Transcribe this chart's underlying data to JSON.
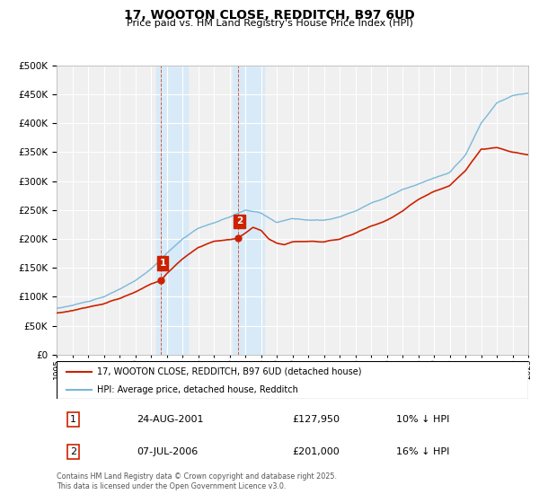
{
  "title": "17, WOOTON CLOSE, REDDITCH, B97 6UD",
  "subtitle": "Price paid vs. HM Land Registry's House Price Index (HPI)",
  "legend_line1": "17, WOOTON CLOSE, REDDITCH, B97 6UD (detached house)",
  "legend_line2": "HPI: Average price, detached house, Redditch",
  "annotation1_label": "1",
  "annotation1_date": "24-AUG-2001",
  "annotation1_price": "£127,950",
  "annotation1_hpi": "10% ↓ HPI",
  "annotation2_label": "2",
  "annotation2_date": "07-JUL-2006",
  "annotation2_price": "£201,000",
  "annotation2_hpi": "16% ↓ HPI",
  "footer": "Contains HM Land Registry data © Crown copyright and database right 2025.\nThis data is licensed under the Open Government Licence v3.0.",
  "hpi_color": "#7ab8d9",
  "price_color": "#cc2200",
  "highlight_color": "#d8eaf7",
  "annotation_box_color": "#cc2200",
  "bg_color": "#f0f0f0",
  "ylim": [
    0,
    500000
  ],
  "yticks": [
    0,
    50000,
    100000,
    150000,
    200000,
    250000,
    300000,
    350000,
    400000,
    450000,
    500000
  ],
  "year_start": 1995,
  "year_end": 2025,
  "sale1_year": 2001.65,
  "sale1_price": 127950,
  "sale2_year": 2006.52,
  "sale2_price": 201000,
  "figwidth": 6.0,
  "figheight": 5.6,
  "dpi": 100
}
